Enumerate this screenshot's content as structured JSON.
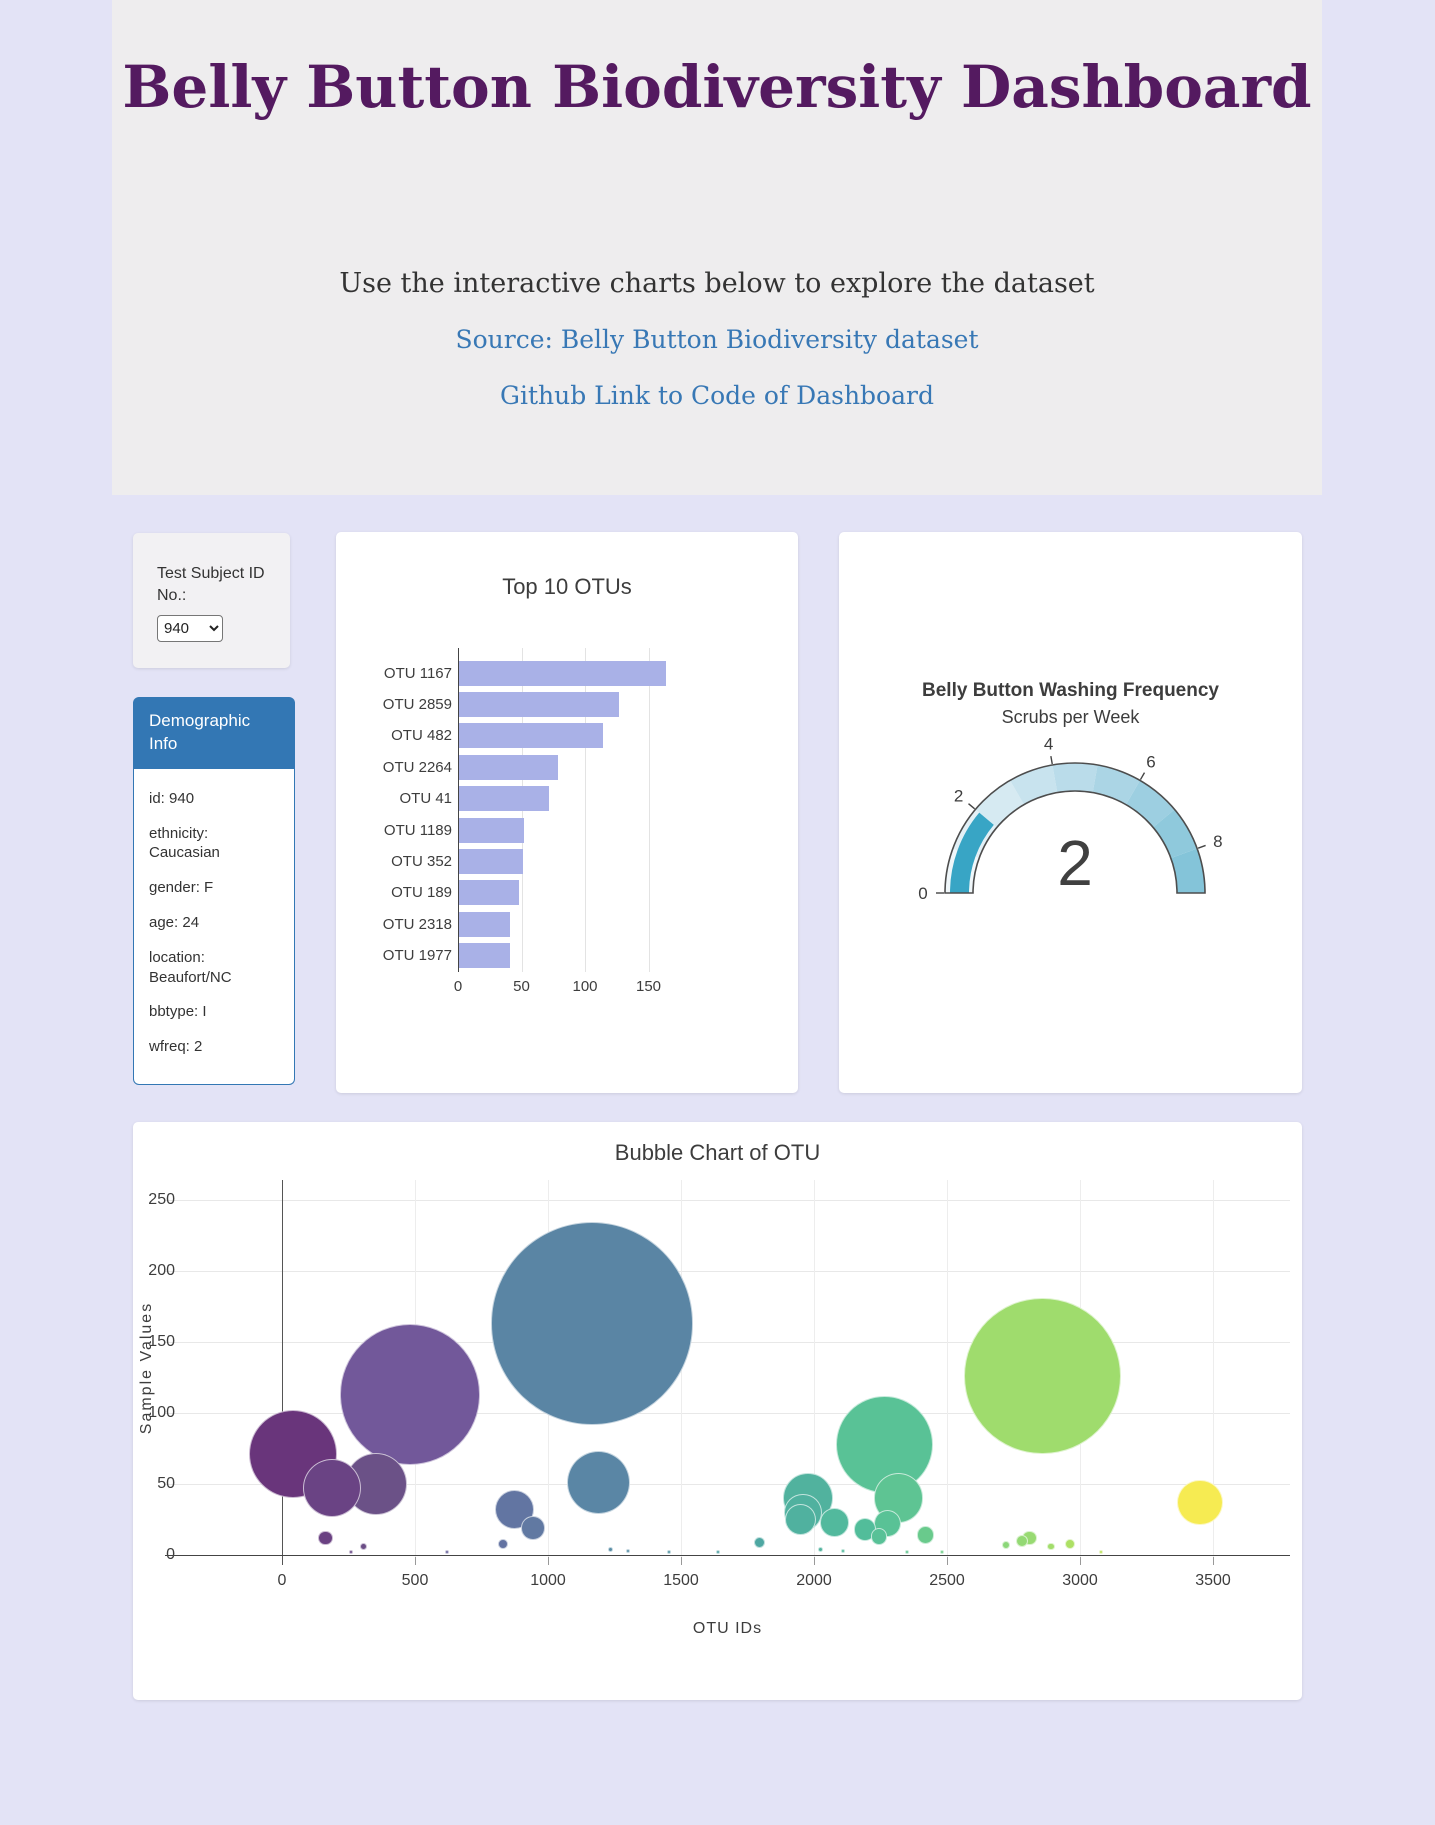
{
  "header": {
    "title": "Belly Button Biodiversity Dashboard",
    "subtitle": "Use the interactive charts below to explore the dataset",
    "source_link": "Source: Belly Button Biodiversity dataset",
    "github_link": "Github Link to Code of Dashboard",
    "title_color": "#541a60",
    "link_color": "#3878b5"
  },
  "selector": {
    "label": "Test Subject ID No.:",
    "selected": "940"
  },
  "demographic": {
    "title": "Demographic Info",
    "accent_color": "#3377b4",
    "items": [
      "id: 940",
      "ethnicity: Caucasian",
      "gender: F",
      "age: 24",
      "location: Beaufort/NC",
      "bbtype: I",
      "wfreq: 2"
    ]
  },
  "chart_data": [
    {
      "type": "bar",
      "orientation": "horizontal",
      "title": "Top 10 OTUs",
      "categories": [
        "OTU 1167",
        "OTU 2859",
        "OTU 482",
        "OTU 2264",
        "OTU 41",
        "OTU 1189",
        "OTU 352",
        "OTU 189",
        "OTU 2318",
        "OTU 1977"
      ],
      "values": [
        163,
        126,
        113,
        78,
        71,
        51,
        50,
        47,
        40,
        40
      ],
      "xticks": [
        0,
        50,
        100,
        150
      ],
      "xlim": [
        0,
        170
      ],
      "bar_color": "#a9b1e7",
      "grid": true
    },
    {
      "type": "gauge",
      "title": "Belly Button Washing Frequency",
      "subtitle": "Scrubs per Week",
      "value": 2,
      "range": [
        0,
        9
      ],
      "tick_labels": [
        0,
        2,
        4,
        6,
        8
      ],
      "bar_color": "#38a5c5",
      "step_colors": [
        "#f0f7fa",
        "#e3f0f6",
        "#d6eaf2",
        "#c8e3ee",
        "#badcea",
        "#abd5e5",
        "#9dcfe1",
        "#8fc9dc",
        "#84c4d9"
      ],
      "outline_color": "#4d4d4d"
    },
    {
      "type": "scatter",
      "subtype": "bubble",
      "title": "Bubble Chart of OTU",
      "xlabel": "OTU IDs",
      "ylabel": "Sample Values",
      "xticks": [
        0,
        500,
        1000,
        1500,
        2000,
        2500,
        3000,
        3500
      ],
      "yticks": [
        0,
        50,
        100,
        150,
        200,
        250
      ],
      "xlim": [
        -440,
        3780
      ],
      "ylim": [
        0,
        265
      ],
      "size_note": "marker diameter proportional to sample value",
      "color_note": "viridis colorscale by OTU id, 0.8 opacity",
      "points": [
        {
          "otu_id": 1167,
          "value": 163,
          "color": "#5a85a4"
        },
        {
          "otu_id": 2859,
          "value": 126,
          "color": "#9fdc6d"
        },
        {
          "otu_id": 482,
          "value": 113,
          "color": "#72589a"
        },
        {
          "otu_id": 2264,
          "value": 78,
          "color": "#59c296"
        },
        {
          "otu_id": 41,
          "value": 71,
          "color": "#69357b"
        },
        {
          "otu_id": 1189,
          "value": 51,
          "color": "#5a86a5"
        },
        {
          "otu_id": 352,
          "value": 50,
          "color": "#6b5187"
        },
        {
          "otu_id": 189,
          "value": 47,
          "color": "#6a4384"
        },
        {
          "otu_id": 2318,
          "value": 40,
          "color": "#5ec493"
        },
        {
          "otu_id": 1977,
          "value": 40,
          "color": "#51b29e"
        },
        {
          "otu_id": 3450,
          "value": 37,
          "color": "#f6eb52"
        },
        {
          "otu_id": 874,
          "value": 32,
          "color": "#6275a2"
        },
        {
          "otu_id": 1959,
          "value": 30,
          "color": "#50b19f"
        },
        {
          "otu_id": 1950,
          "value": 25,
          "color": "#50b19f"
        },
        {
          "otu_id": 2077,
          "value": 23,
          "color": "#52b99d"
        },
        {
          "otu_id": 2275,
          "value": 22,
          "color": "#59c296"
        },
        {
          "otu_id": 944,
          "value": 19,
          "color": "#6179a2"
        },
        {
          "otu_id": 2191,
          "value": 18,
          "color": "#52bd9a"
        },
        {
          "otu_id": 2419,
          "value": 14,
          "color": "#69ca8c"
        },
        {
          "otu_id": 2244,
          "value": 13,
          "color": "#58c197"
        },
        {
          "otu_id": 165,
          "value": 12,
          "color": "#6a4182"
        },
        {
          "otu_id": 2811,
          "value": 12,
          "color": "#98da72"
        },
        {
          "otu_id": 2782,
          "value": 10,
          "color": "#94d974"
        },
        {
          "otu_id": 1795,
          "value": 9,
          "color": "#4ea7a2"
        },
        {
          "otu_id": 2964,
          "value": 8,
          "color": "#ade064"
        },
        {
          "otu_id": 830,
          "value": 8,
          "color": "#6373a2"
        },
        {
          "otu_id": 2722,
          "value": 7,
          "color": "#8cd779"
        },
        {
          "otu_id": 2891,
          "value": 6,
          "color": "#a2dd6b"
        },
        {
          "otu_id": 307,
          "value": 6,
          "color": "#6b4d86"
        },
        {
          "otu_id": 2024,
          "value": 4,
          "color": "#51b39e"
        },
        {
          "otu_id": 1236,
          "value": 4,
          "color": "#588da5"
        },
        {
          "otu_id": 1300,
          "value": 3,
          "color": "#568ea5"
        },
        {
          "otu_id": 2110,
          "value": 3,
          "color": "#52ba9c"
        },
        {
          "otu_id": 260,
          "value": 2,
          "color": "#6b4a87"
        },
        {
          "otu_id": 620,
          "value": 2,
          "color": "#68639c"
        },
        {
          "otu_id": 1456,
          "value": 2,
          "color": "#5396a4"
        },
        {
          "otu_id": 1640,
          "value": 2,
          "color": "#50a1a4"
        },
        {
          "otu_id": 2350,
          "value": 2,
          "color": "#61c591"
        },
        {
          "otu_id": 2480,
          "value": 2,
          "color": "#70cd89"
        },
        {
          "otu_id": 3080,
          "value": 2,
          "color": "#bce35c"
        }
      ]
    }
  ]
}
